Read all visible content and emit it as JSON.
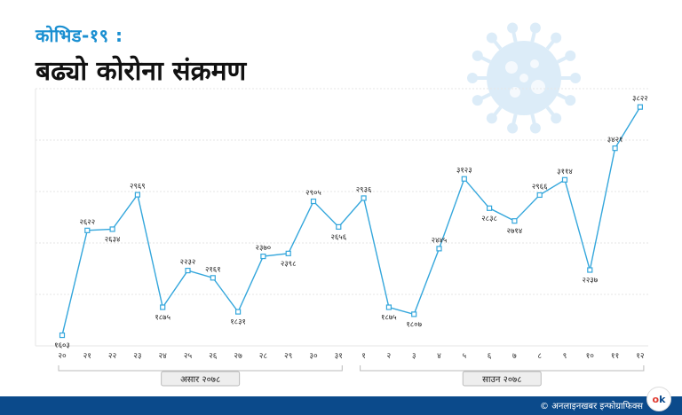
{
  "header": {
    "kicker": "कोभिड-१९ :",
    "title": "बढ्यो कोरोना संक्रमण"
  },
  "footer": {
    "credit": "© अनलाइनखबर इन्फोग्राफिक्स",
    "logo_left": "o",
    "logo_right": "k"
  },
  "colors": {
    "accent": "#1a8fd1",
    "line": "#35a7dc",
    "footer": "#0b4a8b",
    "virus": "#dcecf8"
  },
  "chart_data": {
    "type": "line",
    "title": "",
    "xlabel": "",
    "ylabel": "",
    "ylim": [
      1500,
      4000
    ],
    "grid": "horizontal",
    "categories": [
      "२०",
      "२१",
      "२२",
      "२३",
      "२४",
      "२५",
      "२६",
      "२७",
      "२८",
      "२९",
      "३०",
      "३१",
      "१",
      "२",
      "३",
      "४",
      "५",
      "६",
      "७",
      "८",
      "९",
      "१०",
      "११",
      "१२"
    ],
    "values": [
      1603,
      2622,
      2634,
      2969,
      1875,
      2232,
      2161,
      1831,
      2370,
      2398,
      2905,
      2656,
      2936,
      1875,
      1807,
      2445,
      3123,
      2838,
      2714,
      2966,
      3114,
      2237,
      3421,
      3822
    ],
    "value_labels": [
      "१६०३",
      "२६२२",
      "२६३४",
      "२९६९",
      "१८७५",
      "२२३२",
      "२१६१",
      "१८३१",
      "२३७०",
      "२३९८",
      "२९०५",
      "२६५६",
      "२९३६",
      "१८७५",
      "१८०७",
      "२४४५",
      "३१२३",
      "२८३८",
      "२७१४",
      "२९६६",
      "३११४",
      "२२३७",
      "३४२१",
      "३८२२"
    ],
    "label_position": [
      "below",
      "above",
      "below",
      "above",
      "below",
      "above",
      "above",
      "below",
      "above",
      "below",
      "above",
      "below",
      "above",
      "below",
      "below",
      "above",
      "above",
      "below",
      "below",
      "above",
      "above",
      "below",
      "above",
      "above"
    ],
    "groups": [
      {
        "label": "असार २०७८",
        "from": 0,
        "to": 11
      },
      {
        "label": "साउन २०७८",
        "from": 12,
        "to": 23
      }
    ]
  }
}
